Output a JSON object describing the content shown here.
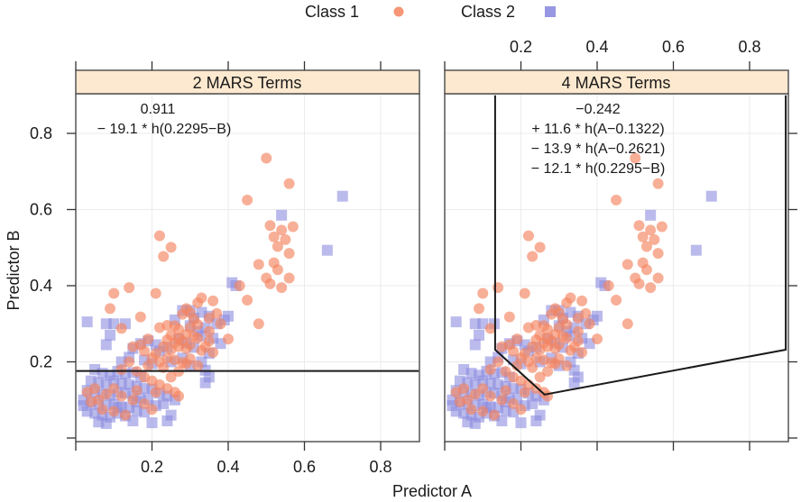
{
  "chart_data": {
    "type": "scatter",
    "xlabel": "Predictor A",
    "ylabel": "Predictor B",
    "xlim": [
      0,
      0.9
    ],
    "ylim": [
      0,
      0.9
    ],
    "xticks": [
      0.2,
      0.4,
      0.6,
      0.8
    ],
    "xtick_labels": [
      "0.2",
      "0.4",
      "0.6",
      "0.8"
    ],
    "yticks": [
      0.2,
      0.4,
      0.6,
      0.8
    ],
    "ytick_labels": [
      "0.2",
      "0.4",
      "0.6",
      "0.8"
    ],
    "grid": true,
    "legend": {
      "placement": "top-center",
      "entries": [
        {
          "label": "Class 1",
          "marker": "circle",
          "color": "#f4845f"
        },
        {
          "label": "Class 2",
          "marker": "square",
          "color": "#8c8ce0"
        }
      ]
    },
    "colors": {
      "class1": "#f4845f",
      "class2": "#8c8ce0",
      "strip": "#fde9cf",
      "boundary": "#1a1a1a"
    },
    "panels": [
      {
        "title": "2 MARS Terms",
        "equation": [
          "0.911",
          "− 19.1 * h(0.2295−B)"
        ],
        "boundary": [
          [
            0.0,
            0.176
          ],
          [
            0.9,
            0.176
          ]
        ]
      },
      {
        "title": "4 MARS Terms",
        "equation": [
          "−0.242",
          "+ 11.6 * h(A−0.1322)",
          "− 13.9 * h(A−0.2621)",
          "− 12.1 * h(0.2295−B)"
        ],
        "boundary": [
          [
            0.1322,
            0.9
          ],
          [
            0.1322,
            0.232
          ],
          [
            0.2621,
            0.114
          ],
          [
            0.895,
            0.232
          ],
          [
            0.895,
            0.9
          ]
        ]
      }
    ],
    "series": [
      {
        "name": "Class 1",
        "points": [
          [
            0.5,
            0.735
          ],
          [
            0.56,
            0.668
          ],
          [
            0.45,
            0.625
          ],
          [
            0.22,
            0.531
          ],
          [
            0.25,
            0.501
          ],
          [
            0.23,
            0.477
          ],
          [
            0.51,
            0.558
          ],
          [
            0.54,
            0.546
          ],
          [
            0.57,
            0.555
          ],
          [
            0.52,
            0.528
          ],
          [
            0.55,
            0.521
          ],
          [
            0.53,
            0.503
          ],
          [
            0.56,
            0.485
          ],
          [
            0.52,
            0.46
          ],
          [
            0.53,
            0.442
          ],
          [
            0.5,
            0.42
          ],
          [
            0.51,
            0.405
          ],
          [
            0.54,
            0.395
          ],
          [
            0.56,
            0.42
          ],
          [
            0.48,
            0.456
          ],
          [
            0.43,
            0.4
          ],
          [
            0.45,
            0.362
          ],
          [
            0.48,
            0.3
          ],
          [
            0.14,
            0.395
          ],
          [
            0.1,
            0.38
          ],
          [
            0.09,
            0.34
          ],
          [
            0.17,
            0.318
          ],
          [
            0.12,
            0.288
          ],
          [
            0.21,
            0.38
          ],
          [
            0.33,
            0.368
          ],
          [
            0.32,
            0.355
          ],
          [
            0.3,
            0.33
          ],
          [
            0.36,
            0.36
          ],
          [
            0.37,
            0.327
          ],
          [
            0.35,
            0.315
          ],
          [
            0.29,
            0.34
          ],
          [
            0.28,
            0.325
          ],
          [
            0.31,
            0.312
          ],
          [
            0.26,
            0.295
          ],
          [
            0.27,
            0.285
          ],
          [
            0.3,
            0.29
          ],
          [
            0.32,
            0.298
          ],
          [
            0.22,
            0.29
          ],
          [
            0.24,
            0.296
          ],
          [
            0.25,
            0.27
          ],
          [
            0.27,
            0.262
          ],
          [
            0.29,
            0.272
          ],
          [
            0.28,
            0.255
          ],
          [
            0.31,
            0.268
          ],
          [
            0.26,
            0.25
          ],
          [
            0.27,
            0.24
          ],
          [
            0.29,
            0.235
          ],
          [
            0.3,
            0.245
          ],
          [
            0.25,
            0.232
          ],
          [
            0.23,
            0.24
          ],
          [
            0.24,
            0.258
          ],
          [
            0.32,
            0.262
          ],
          [
            0.35,
            0.28
          ],
          [
            0.38,
            0.3
          ],
          [
            0.34,
            0.24
          ],
          [
            0.33,
            0.23
          ],
          [
            0.36,
            0.225
          ],
          [
            0.4,
            0.26
          ],
          [
            0.19,
            0.26
          ],
          [
            0.17,
            0.245
          ],
          [
            0.15,
            0.24
          ],
          [
            0.18,
            0.228
          ],
          [
            0.21,
            0.222
          ],
          [
            0.2,
            0.21
          ],
          [
            0.22,
            0.2
          ],
          [
            0.24,
            0.21
          ],
          [
            0.26,
            0.205
          ],
          [
            0.28,
            0.198
          ],
          [
            0.3,
            0.208
          ],
          [
            0.23,
            0.185
          ],
          [
            0.27,
            0.175
          ],
          [
            0.32,
            0.19
          ],
          [
            0.14,
            0.2
          ],
          [
            0.12,
            0.18
          ],
          [
            0.16,
            0.175
          ],
          [
            0.18,
            0.16
          ],
          [
            0.2,
            0.15
          ],
          [
            0.22,
            0.14
          ],
          [
            0.24,
            0.13
          ],
          [
            0.1,
            0.13
          ],
          [
            0.08,
            0.115
          ],
          [
            0.06,
            0.1
          ],
          [
            0.04,
            0.095
          ],
          [
            0.05,
            0.13
          ],
          [
            0.12,
            0.11
          ],
          [
            0.15,
            0.1
          ],
          [
            0.18,
            0.09
          ],
          [
            0.2,
            0.075
          ],
          [
            0.1,
            0.07
          ],
          [
            0.13,
            0.06
          ],
          [
            0.25,
            0.16
          ],
          [
            0.26,
            0.12
          ],
          [
            0.27,
            0.11
          ],
          [
            0.21,
            0.12
          ],
          [
            0.07,
            0.075
          ],
          [
            0.03,
            0.12
          ],
          [
            0.16,
            0.125
          ],
          [
            0.19,
            0.19
          ],
          [
            0.29,
            0.195
          ],
          [
            0.35,
            0.255
          ]
        ]
      },
      {
        "name": "Class 2",
        "points": [
          [
            0.7,
            0.635
          ],
          [
            0.54,
            0.585
          ],
          [
            0.66,
            0.493
          ],
          [
            0.41,
            0.408
          ],
          [
            0.42,
            0.4
          ],
          [
            0.03,
            0.305
          ],
          [
            0.08,
            0.3
          ],
          [
            0.1,
            0.3
          ],
          [
            0.09,
            0.27
          ],
          [
            0.08,
            0.245
          ],
          [
            0.13,
            0.3
          ],
          [
            0.28,
            0.335
          ],
          [
            0.3,
            0.335
          ],
          [
            0.33,
            0.33
          ],
          [
            0.35,
            0.32
          ],
          [
            0.31,
            0.315
          ],
          [
            0.26,
            0.31
          ],
          [
            0.3,
            0.295
          ],
          [
            0.32,
            0.28
          ],
          [
            0.33,
            0.268
          ],
          [
            0.34,
            0.29
          ],
          [
            0.37,
            0.3
          ],
          [
            0.39,
            0.31
          ],
          [
            0.4,
            0.32
          ],
          [
            0.27,
            0.26
          ],
          [
            0.29,
            0.25
          ],
          [
            0.31,
            0.238
          ],
          [
            0.36,
            0.262
          ],
          [
            0.38,
            0.248
          ],
          [
            0.35,
            0.222
          ],
          [
            0.19,
            0.255
          ],
          [
            0.17,
            0.248
          ],
          [
            0.15,
            0.235
          ],
          [
            0.21,
            0.245
          ],
          [
            0.24,
            0.238
          ],
          [
            0.22,
            0.228
          ],
          [
            0.14,
            0.212
          ],
          [
            0.12,
            0.2
          ],
          [
            0.18,
            0.205
          ],
          [
            0.2,
            0.195
          ],
          [
            0.25,
            0.2
          ],
          [
            0.28,
            0.21
          ],
          [
            0.3,
            0.19
          ],
          [
            0.34,
            0.178
          ],
          [
            0.35,
            0.16
          ],
          [
            0.34,
            0.145
          ],
          [
            0.33,
            0.2
          ],
          [
            0.05,
            0.18
          ],
          [
            0.07,
            0.17
          ],
          [
            0.09,
            0.165
          ],
          [
            0.11,
            0.175
          ],
          [
            0.13,
            0.168
          ],
          [
            0.15,
            0.172
          ],
          [
            0.17,
            0.16
          ],
          [
            0.04,
            0.15
          ],
          [
            0.06,
            0.145
          ],
          [
            0.08,
            0.14
          ],
          [
            0.1,
            0.15
          ],
          [
            0.12,
            0.145
          ],
          [
            0.14,
            0.14
          ],
          [
            0.16,
            0.135
          ],
          [
            0.18,
            0.13
          ],
          [
            0.2,
            0.128
          ],
          [
            0.22,
            0.118
          ],
          [
            0.24,
            0.11
          ],
          [
            0.26,
            0.1
          ],
          [
            0.03,
            0.125
          ],
          [
            0.05,
            0.12
          ],
          [
            0.07,
            0.115
          ],
          [
            0.09,
            0.112
          ],
          [
            0.11,
            0.12
          ],
          [
            0.13,
            0.118
          ],
          [
            0.15,
            0.11
          ],
          [
            0.17,
            0.105
          ],
          [
            0.19,
            0.1
          ],
          [
            0.02,
            0.1
          ],
          [
            0.04,
            0.095
          ],
          [
            0.06,
            0.088
          ],
          [
            0.08,
            0.085
          ],
          [
            0.1,
            0.09
          ],
          [
            0.12,
            0.082
          ],
          [
            0.14,
            0.08
          ],
          [
            0.16,
            0.072
          ],
          [
            0.18,
            0.068
          ],
          [
            0.21,
            0.085
          ],
          [
            0.23,
            0.09
          ],
          [
            0.03,
            0.07
          ],
          [
            0.05,
            0.065
          ],
          [
            0.07,
            0.06
          ],
          [
            0.09,
            0.055
          ],
          [
            0.11,
            0.065
          ],
          [
            0.13,
            0.058
          ],
          [
            0.06,
            0.042
          ],
          [
            0.08,
            0.038
          ],
          [
            0.15,
            0.045
          ],
          [
            0.2,
            0.04
          ],
          [
            0.24,
            0.045
          ],
          [
            0.11,
            0.08
          ],
          [
            0.25,
            0.06
          ],
          [
            0.02,
            0.085
          ],
          [
            0.16,
            0.095
          ]
        ]
      }
    ]
  }
}
